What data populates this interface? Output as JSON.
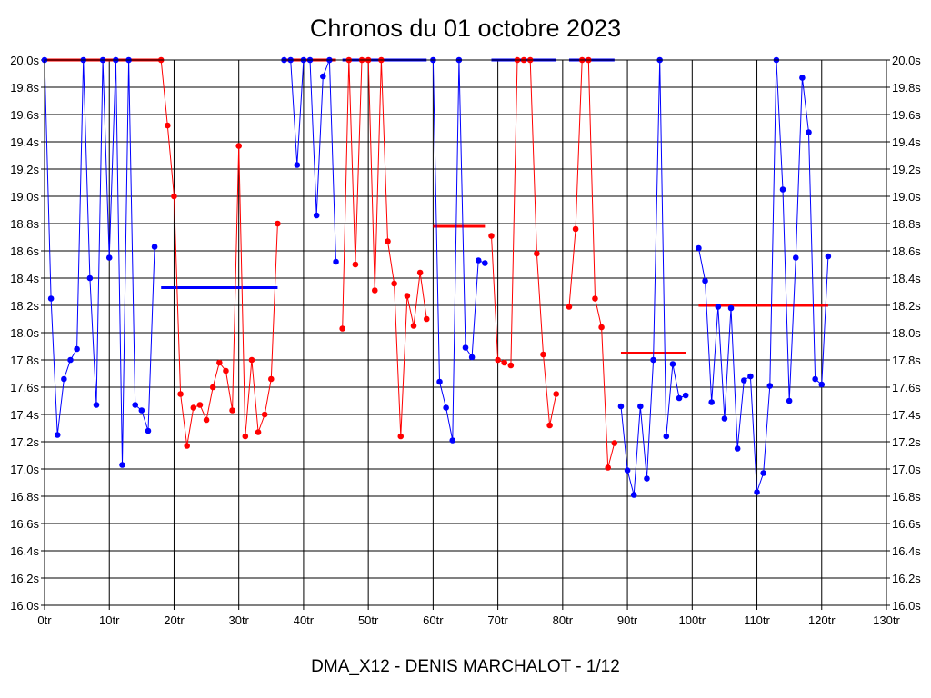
{
  "chart_data": {
    "type": "line",
    "title": "Chronos du 01 octobre 2023",
    "footer": "DMA_X12 - DENIS MARCHALOT - 1/12",
    "x_unit": "tr",
    "y_unit": "s",
    "xlim": [
      0,
      130
    ],
    "ylim": [
      16.0,
      20.0
    ],
    "x_ticks": [
      0,
      10,
      20,
      30,
      40,
      50,
      60,
      70,
      80,
      90,
      100,
      110,
      120,
      130
    ],
    "y_ticks": [
      16.0,
      16.2,
      16.4,
      16.6,
      16.8,
      17.0,
      17.2,
      17.4,
      17.6,
      17.8,
      18.0,
      18.2,
      18.4,
      18.6,
      18.8,
      19.0,
      19.2,
      19.4,
      19.6,
      19.8,
      20.0
    ],
    "x_tick_labels": [
      "0tr",
      "10tr",
      "20tr",
      "30tr",
      "40tr",
      "50tr",
      "60tr",
      "70tr",
      "80tr",
      "90tr",
      "100tr",
      "110tr",
      "120tr",
      "130tr"
    ],
    "y_tick_labels": [
      "16.0s",
      "16.2s",
      "16.4s",
      "16.6s",
      "16.8s",
      "17.0s",
      "17.2s",
      "17.4s",
      "17.6s",
      "17.8s",
      "18.0s",
      "18.2s",
      "18.4s",
      "18.6s",
      "18.8s",
      "19.0s",
      "19.2s",
      "19.4s",
      "19.6s",
      "19.8s",
      "20.0s"
    ],
    "grid": true,
    "colors": {
      "blue": "#0000ff",
      "red": "#ff0000",
      "grid": "#000000"
    },
    "segments": [
      {
        "color": "blue",
        "points": [
          [
            0,
            20.0
          ],
          [
            1,
            18.25
          ],
          [
            2,
            17.25
          ],
          [
            3,
            17.66
          ],
          [
            4,
            17.8
          ],
          [
            5,
            17.88
          ],
          [
            6,
            20.0
          ],
          [
            7,
            18.4
          ],
          [
            8,
            17.47
          ],
          [
            9,
            20.0
          ],
          [
            10,
            18.55
          ],
          [
            11,
            20.0
          ],
          [
            12,
            17.03
          ],
          [
            13,
            20.0
          ],
          [
            14,
            17.47
          ],
          [
            15,
            17.43
          ],
          [
            16,
            17.28
          ],
          [
            17,
            18.63
          ]
        ]
      },
      {
        "color": "red",
        "points": [
          [
            18,
            20.0
          ],
          [
            19,
            19.52
          ],
          [
            20,
            19.0
          ],
          [
            21,
            17.55
          ],
          [
            22,
            17.17
          ],
          [
            23,
            17.45
          ],
          [
            24,
            17.47
          ],
          [
            25,
            17.36
          ],
          [
            26,
            17.6
          ],
          [
            27,
            17.78
          ],
          [
            28,
            17.72
          ],
          [
            29,
            17.43
          ],
          [
            30,
            19.37
          ],
          [
            31,
            17.24
          ],
          [
            32,
            17.8
          ],
          [
            33,
            17.27
          ],
          [
            34,
            17.4
          ],
          [
            35,
            17.66
          ],
          [
            36,
            18.8
          ]
        ]
      },
      {
        "color": "blue",
        "points": [
          [
            37,
            20.0
          ],
          [
            38,
            20.0
          ],
          [
            39,
            19.23
          ],
          [
            40,
            20.0
          ],
          [
            41,
            20.0
          ],
          [
            42,
            18.86
          ],
          [
            43,
            19.88
          ],
          [
            44,
            20.0
          ],
          [
            45,
            18.52
          ]
        ]
      },
      {
        "color": "red",
        "points": [
          [
            46,
            18.03
          ],
          [
            47,
            20.0
          ],
          [
            48,
            18.5
          ],
          [
            49,
            20.0
          ],
          [
            50,
            20.0
          ],
          [
            51,
            18.31
          ],
          [
            52,
            20.0
          ],
          [
            53,
            18.67
          ],
          [
            54,
            18.36
          ],
          [
            55,
            17.24
          ],
          [
            56,
            18.27
          ],
          [
            57,
            18.05
          ],
          [
            58,
            18.44
          ],
          [
            59,
            18.1
          ]
        ]
      },
      {
        "color": "blue",
        "points": [
          [
            60,
            20.0
          ],
          [
            61,
            17.64
          ],
          [
            62,
            17.45
          ],
          [
            63,
            17.21
          ],
          [
            64,
            20.0
          ],
          [
            65,
            17.89
          ],
          [
            66,
            17.82
          ],
          [
            67,
            18.53
          ],
          [
            68,
            18.51
          ]
        ]
      },
      {
        "color": "red",
        "points": [
          [
            69,
            18.71
          ],
          [
            70,
            17.8
          ],
          [
            71,
            17.78
          ],
          [
            72,
            17.76
          ],
          [
            73,
            20.0
          ],
          [
            74,
            20.0
          ],
          [
            75,
            20.0
          ],
          [
            76,
            18.58
          ],
          [
            77,
            17.84
          ],
          [
            78,
            17.32
          ],
          [
            79,
            17.55
          ]
        ]
      },
      {
        "color": "red",
        "points": [
          [
            81,
            18.19
          ],
          [
            82,
            18.76
          ],
          [
            83,
            20.0
          ],
          [
            84,
            20.0
          ],
          [
            85,
            18.25
          ],
          [
            86,
            18.04
          ],
          [
            87,
            17.01
          ],
          [
            88,
            17.19
          ]
        ]
      },
      {
        "color": "blue",
        "points": [
          [
            89,
            17.46
          ],
          [
            90,
            16.99
          ],
          [
            91,
            16.81
          ],
          [
            92,
            17.46
          ],
          [
            93,
            16.93
          ],
          [
            94,
            17.8
          ],
          [
            95,
            20.0
          ],
          [
            96,
            17.24
          ],
          [
            97,
            17.77
          ],
          [
            98,
            17.52
          ],
          [
            99,
            17.54
          ]
        ]
      },
      {
        "color": "blue",
        "points": [
          [
            101,
            18.62
          ],
          [
            102,
            18.38
          ],
          [
            103,
            17.49
          ],
          [
            104,
            18.19
          ],
          [
            105,
            17.37
          ],
          [
            106,
            18.18
          ],
          [
            107,
            17.15
          ],
          [
            108,
            17.65
          ],
          [
            109,
            17.68
          ],
          [
            110,
            16.83
          ],
          [
            111,
            16.97
          ],
          [
            112,
            17.61
          ],
          [
            113,
            20.0
          ],
          [
            114,
            19.05
          ],
          [
            115,
            17.5
          ],
          [
            116,
            18.55
          ],
          [
            117,
            19.87
          ],
          [
            118,
            19.47
          ],
          [
            119,
            17.66
          ],
          [
            120,
            17.62
          ],
          [
            121,
            18.56
          ]
        ]
      }
    ],
    "average_lines": [
      {
        "color": "red",
        "x": [
          0,
          18
        ],
        "y": 20.0
      },
      {
        "color": "blue",
        "x": [
          18,
          36
        ],
        "y": 18.33
      },
      {
        "color": "red",
        "x": [
          37,
          45
        ],
        "y": 20.0
      },
      {
        "color": "blue",
        "x": [
          46,
          59
        ],
        "y": 20.0
      },
      {
        "color": "red",
        "x": [
          60,
          68
        ],
        "y": 18.78
      },
      {
        "color": "blue",
        "x": [
          69,
          79
        ],
        "y": 20.0
      },
      {
        "color": "blue",
        "x": [
          81,
          88
        ],
        "y": 20.0
      },
      {
        "color": "red",
        "x": [
          89,
          99
        ],
        "y": 17.85
      },
      {
        "color": "red",
        "x": [
          101,
          121
        ],
        "y": 18.2
      }
    ]
  }
}
